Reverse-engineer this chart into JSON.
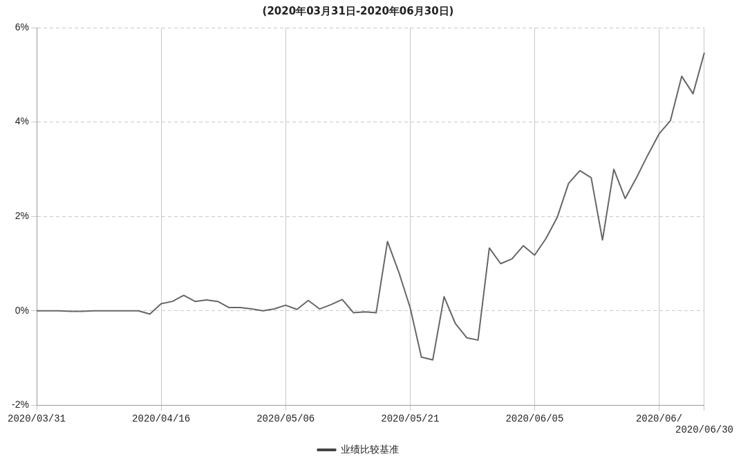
{
  "chart_data": {
    "type": "line",
    "title": "(2020年03月31日-2020年06月30日)",
    "categories": [
      "2020/03/31",
      null,
      null,
      null,
      null,
      null,
      null,
      null,
      null,
      null,
      null,
      "2020/04/16",
      null,
      null,
      null,
      null,
      null,
      null,
      null,
      null,
      null,
      null,
      "2020/05/06",
      null,
      null,
      null,
      null,
      null,
      null,
      null,
      null,
      null,
      null,
      "2020/05/21",
      null,
      null,
      null,
      null,
      null,
      null,
      null,
      null,
      null,
      null,
      "2020/06/05",
      null,
      null,
      null,
      null,
      null,
      null,
      null,
      null,
      null,
      null,
      "2020/06/",
      null,
      null,
      null,
      "2020/06/30"
    ],
    "series": [
      {
        "color": "#666666",
        "values": [
          0,
          0,
          0,
          -0.01,
          -0.01,
          0,
          0,
          0,
          0,
          0,
          -0.07,
          0.15,
          0.2,
          0.33,
          0.2,
          0.23,
          0.2,
          0.07,
          0.07,
          0.04,
          0,
          0.04,
          0.12,
          0.03,
          0.22,
          0.04,
          0.13,
          0.24,
          -0.04,
          -0.02,
          -0.04,
          1.47,
          0.82,
          0.07,
          -0.98,
          -1.04,
          0.3,
          -0.27,
          -0.57,
          -0.62,
          1.33,
          1.0,
          1.1,
          1.38,
          1.18,
          1.53,
          1.98,
          2.7,
          2.97,
          2.82,
          1.5,
          3.0,
          2.38,
          2.82,
          3.3,
          3.75,
          4.03,
          4.97,
          4.6,
          5.47
        ]
      },
      {
        "name": "业绩比较基准",
        "color": "#444444",
        "values": [
          null,
          null,
          null,
          null,
          null,
          null,
          null,
          null,
          null,
          null,
          null,
          null,
          null,
          null,
          null,
          null,
          null,
          null,
          null,
          null,
          null,
          null,
          null,
          null,
          null,
          null,
          null,
          null,
          null,
          null,
          null,
          null,
          null,
          null,
          null,
          null,
          null,
          null,
          null,
          null,
          null,
          null,
          null,
          null,
          null,
          null,
          null,
          null,
          null,
          null,
          null,
          null,
          null,
          null,
          null,
          null,
          null,
          null,
          null,
          null
        ]
      }
    ],
    "ylim": [
      -2,
      6
    ],
    "yticks": [
      {
        "value": -2,
        "label": "-2%"
      },
      {
        "value": 0,
        "label": "0%"
      },
      {
        "value": 2,
        "label": "2%"
      },
      {
        "value": 4,
        "label": "4%"
      },
      {
        "value": 6,
        "label": "6%"
      }
    ],
    "grid": true,
    "legend": "bottom",
    "line_style": "solid",
    "marker": "none"
  }
}
